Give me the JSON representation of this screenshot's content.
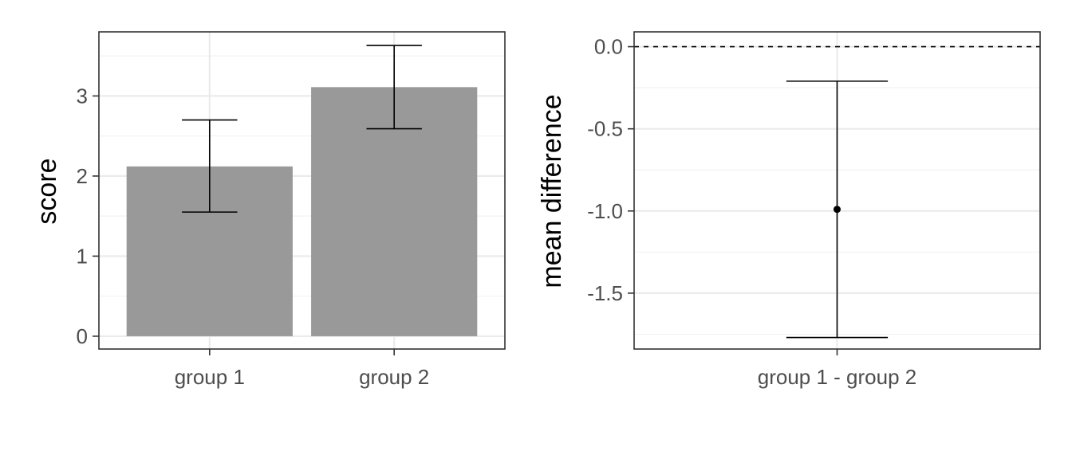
{
  "chart_data": [
    {
      "type": "bar",
      "categories": [
        "group 1",
        "group 2"
      ],
      "values": [
        2.12,
        3.11
      ],
      "error_low": [
        1.55,
        2.59
      ],
      "error_high": [
        2.7,
        3.63
      ],
      "xlabel": "",
      "ylabel": "score",
      "ylim": [
        -0.16,
        3.8
      ],
      "yticks": [
        0,
        1,
        2,
        3
      ],
      "bar_color": "#999999",
      "grid": true
    },
    {
      "type": "scatter",
      "categories": [
        "group 1 - group 2"
      ],
      "values": [
        -0.99
      ],
      "error_low": [
        -1.77
      ],
      "error_high": [
        -0.21
      ],
      "xlabel": "",
      "ylabel": "mean difference",
      "ylim": [
        -1.84,
        0.09
      ],
      "yticks": [
        0.0,
        -0.5,
        -1.0,
        -1.5
      ],
      "ytick_labels": [
        "0.0",
        "-0.5",
        "-1.0",
        "-1.5"
      ],
      "reference_line": 0.0,
      "point_color": "#000000",
      "grid": true
    }
  ]
}
